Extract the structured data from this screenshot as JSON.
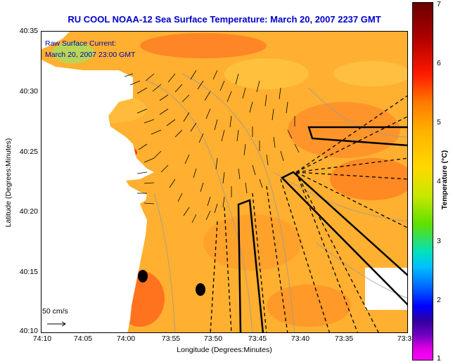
{
  "title": "RU COOL  NOAA-12  Sea Surface Temperature:  March 20, 2007 2237 GMT",
  "overlay": {
    "line1": "Raw Surface Current:",
    "line2": "March 20, 2007 23:00 GMT"
  },
  "scale_label": "50 cm/s",
  "y_axis": {
    "title": "Latitude (Degrees:Minutes)",
    "ticks": [
      "40:35",
      "40:30",
      "40:25",
      "40:20",
      "40:15",
      "40:10"
    ]
  },
  "x_axis": {
    "title": "Longitude (Degrees:Minutes)",
    "ticks": [
      "74:10",
      "74:05",
      "74:00",
      "73:55",
      "73:50",
      "73:45",
      "73:40",
      "73:35",
      "73:3"
    ]
  },
  "colorbar": {
    "label": "Temperature (°C)",
    "ticks": [
      "7",
      "6",
      "5",
      "4",
      "3",
      "2",
      "1"
    ]
  },
  "colors": {
    "ocean_base": "#ffb030",
    "warm_patch": "#ff7a20",
    "hot_patch": "#ff3a10",
    "land": "#ffffff",
    "title": "#0000cc"
  }
}
